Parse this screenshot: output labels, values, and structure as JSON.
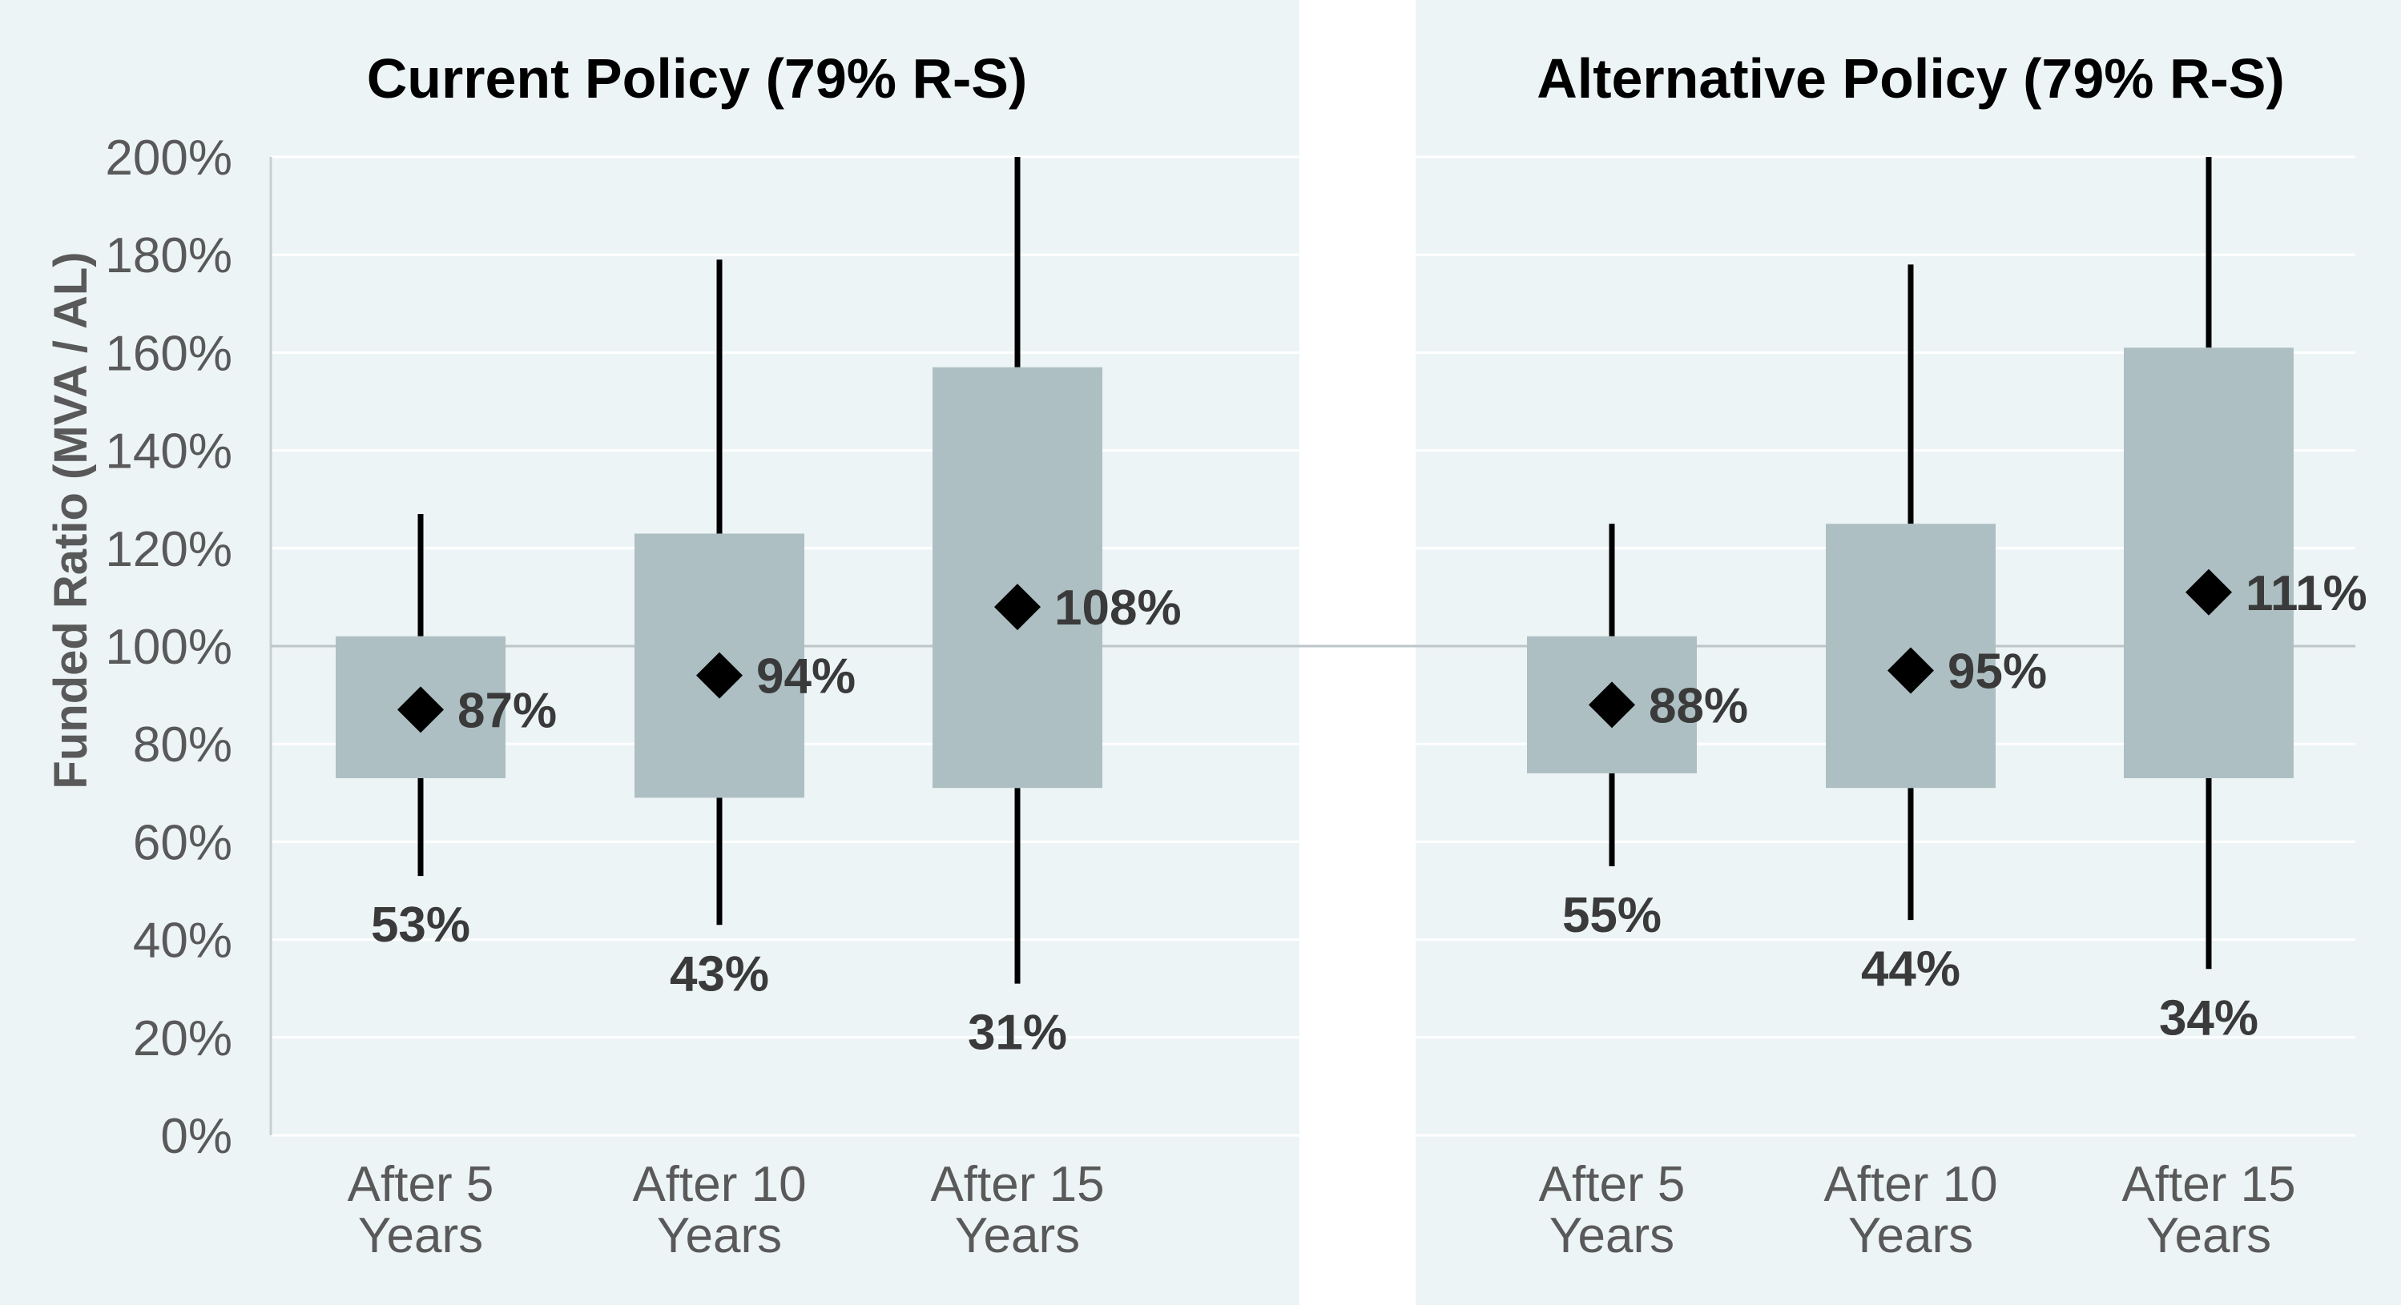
{
  "chart_data": [
    {
      "type": "box",
      "title": "Current Policy (79% R-S)",
      "ylabel": "Funded Ratio (MVA / AL)",
      "ylim": [
        0,
        200
      ],
      "yticks": [
        "0%",
        "20%",
        "40%",
        "60%",
        "80%",
        "100%",
        "120%",
        "140%",
        "160%",
        "180%",
        "200%"
      ],
      "reference_line": 100,
      "categories": [
        [
          "After 5",
          "Years"
        ],
        [
          "After 10",
          "Years"
        ],
        [
          "After 15",
          "Years"
        ]
      ],
      "boxes": [
        {
          "whisker_low": 53,
          "box_low": 73,
          "median": 87,
          "box_high": 102,
          "whisker_high": 127,
          "median_label": "87%",
          "low_label": "53%"
        },
        {
          "whisker_low": 43,
          "box_low": 69,
          "median": 94,
          "box_high": 123,
          "whisker_high": 179,
          "median_label": "94%",
          "low_label": "43%"
        },
        {
          "whisker_low": 31,
          "box_low": 71,
          "median": 108,
          "box_high": 157,
          "whisker_high": 200,
          "median_label": "108%",
          "low_label": "31%"
        }
      ]
    },
    {
      "type": "box",
      "title": "Alternative Policy (79% R-S)",
      "ylim": [
        0,
        200
      ],
      "reference_line": 100,
      "categories": [
        [
          "After 5",
          "Years"
        ],
        [
          "After 10",
          "Years"
        ],
        [
          "After 15",
          "Years"
        ]
      ],
      "boxes": [
        {
          "whisker_low": 55,
          "box_low": 74,
          "median": 88,
          "box_high": 102,
          "whisker_high": 125,
          "median_label": "88%",
          "low_label": "55%"
        },
        {
          "whisker_low": 44,
          "box_low": 71,
          "median": 95,
          "box_high": 125,
          "whisker_high": 178,
          "median_label": "95%",
          "low_label": "44%"
        },
        {
          "whisker_low": 34,
          "box_low": 73,
          "median": 111,
          "box_high": 161,
          "whisker_high": 200,
          "median_label": "111%",
          "low_label": "34%"
        }
      ]
    }
  ],
  "colors": {
    "panel_background": "#edf4f6",
    "box_fill": "#adbfc2",
    "whisker": "#000000",
    "median_marker": "#000000",
    "reference_line": "#bcc5c8",
    "tick_text": "#595959",
    "label_text": "#3a3a3a"
  }
}
